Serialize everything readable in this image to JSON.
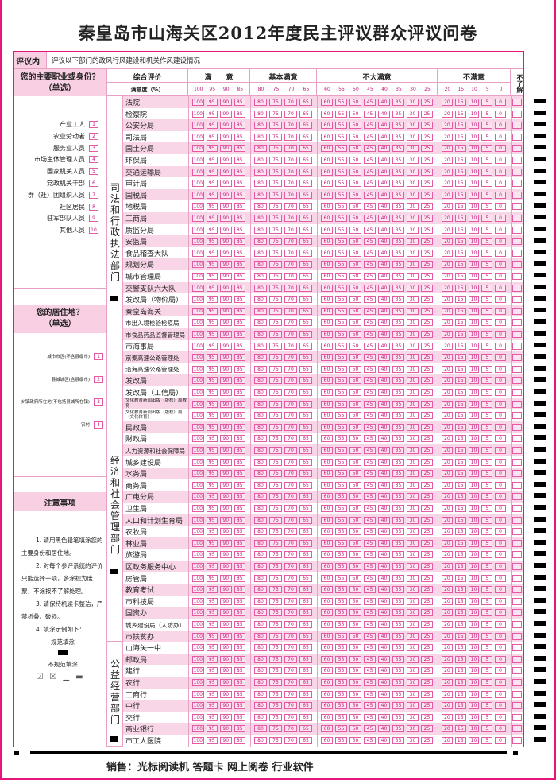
{
  "title": "秦皇岛市山海关区2012年度民主评议群众评议问卷",
  "content": {
    "label": "评议内容",
    "text": "评议以下部门的政风行风建设和机关作风建设情况"
  },
  "q1": {
    "title": "您的主要职业或身份？",
    "sub": "（单选）",
    "options": [
      {
        "label": "产业工人",
        "code": "1"
      },
      {
        "label": "农业劳动者",
        "code": "2"
      },
      {
        "label": "服务业人员",
        "code": "3"
      },
      {
        "label": "市场主体管理人员",
        "code": "4"
      },
      {
        "label": "国家机关人员",
        "code": "5"
      },
      {
        "label": "党政机关干部",
        "code": "6"
      },
      {
        "label": "群（社）团组织人员",
        "code": "7"
      },
      {
        "label": "社区居民",
        "code": "8"
      },
      {
        "label": "驻军部队人员",
        "code": "9"
      },
      {
        "label": "其他人员",
        "code": "10"
      }
    ]
  },
  "q2": {
    "title": "您的居住地？",
    "sub": "（单选）",
    "options": [
      {
        "label": "城市市区(不含县级市)",
        "code": "1"
      },
      {
        "label": "县城城区(含县级市)",
        "code": "2"
      },
      {
        "label": "乡镇政府所在地(不包括县城所在镇)",
        "code": "3"
      },
      {
        "label": "农村",
        "code": "4"
      }
    ]
  },
  "notes": {
    "title": "注意事项",
    "items": [
      "1. 请用黑色铅笔填涂您的主要身份和居住地。",
      "2. 对每个参评系统的评价只能选择一项，多涂视为废票，不涂按不了解处理。",
      "3. 请保持机读卡整洁，严禁折叠、破损。",
      "4. 填涂示例如下："
    ],
    "good": "规范填涂",
    "bad": "不规范填涂"
  },
  "header": {
    "overall": "综合评价",
    "degree": "满意度（%）",
    "groups": [
      {
        "label": "满　　意",
        "scores": [
          "100",
          "95",
          "90",
          "85"
        ]
      },
      {
        "label": "基本满意",
        "scores": [
          "80",
          "75",
          "70",
          "65"
        ]
      },
      {
        "label": "不大满意",
        "scores": [
          "60",
          "55",
          "50",
          "45",
          "40",
          "35",
          "30",
          "25"
        ]
      },
      {
        "label": "不满意",
        "scores": [
          "20",
          "15",
          "10",
          "5",
          "0"
        ]
      }
    ],
    "unknown": "不了解"
  },
  "categories": [
    {
      "label": "司法和行政执法部门",
      "rows": [
        "法院",
        "检察院",
        "公安分局",
        "司法局",
        "国土分局",
        "环保局",
        "交通运输局",
        "审计局",
        "国税局",
        "地税局",
        "工商局",
        "质监分局",
        "安监局",
        "食品稽查大队",
        "规划分局",
        "城市管理局",
        "交警支队六大队",
        "发改局（物价局）",
        "秦皇岛海关",
        "市出入境检验检疫局",
        "市食品药品监督管理局",
        "市海事局",
        "京秦高速公路管理处",
        "沿海高速公路管理处"
      ]
    },
    {
      "label": "经济和社会管理部门",
      "rows": [
        "发改局",
        "发改局（工信局）",
        "文化教育新闻出版（版权）局教育",
        "文化教育新闻出版（版权）局（文化体育）",
        "民政局",
        "财政局",
        "人力资源和社会保障局",
        "城乡建设局",
        "水务局",
        "商务局",
        "广电分局",
        "卫生局",
        "人口和计划生育局",
        "农牧局",
        "林业局",
        "旅游局",
        "区政务服务中心",
        "房管局",
        "教育考试",
        "市科技局",
        "国资办",
        "城乡建设局（人防办）",
        "市扶贫办"
      ]
    },
    {
      "label": "公益经营部门",
      "rows": [
        "山海关一中",
        "邮政局",
        "建行",
        "农行",
        "工商行",
        "中行",
        "交行",
        "商业银行",
        "市工人医院"
      ]
    }
  ],
  "footer": "销售：光标阅读机 答题卡 网上阅卷 行业软件",
  "colors": {
    "accent": "#e5157e",
    "row_fill": "#f9d6e7",
    "box": "#e45aa3"
  }
}
